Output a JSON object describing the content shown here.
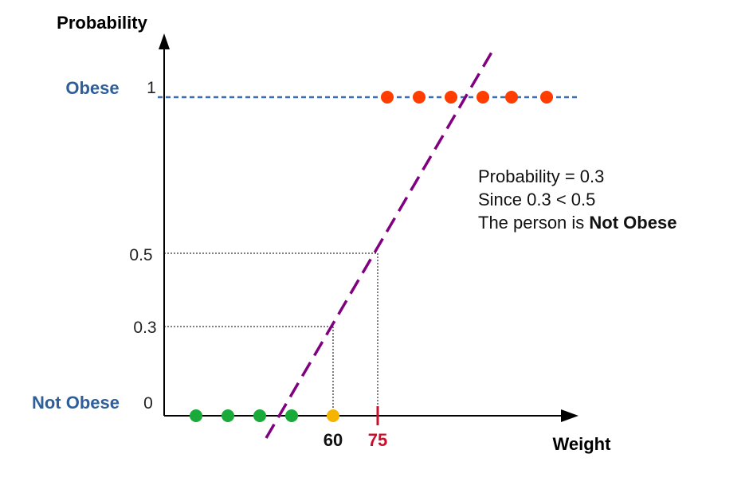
{
  "axes": {
    "y_title": "Probability",
    "x_title": "Weight"
  },
  "class_labels": {
    "positive": "Obese",
    "negative": "Not Obese"
  },
  "y_ticks": {
    "one": "1",
    "half": "0.5",
    "point3": "0.3",
    "zero": "0"
  },
  "x_marks": {
    "query": "60",
    "threshold": "75"
  },
  "annotation": {
    "line1": "Probability = 0.3",
    "line2": "Since 0.3 < 0.5",
    "line3_prefix": "The person is ",
    "line3_bold": "Not Obese"
  },
  "colors": {
    "class_label": "#2e5f9a",
    "obese_point": "#ff3d00",
    "not_obese_point": "#1aaa3a",
    "query_point": "#f4b400",
    "threshold_mark": "#c8102e",
    "regression_line": "#800080",
    "obese_level_line": "#3a6fb0"
  }
}
